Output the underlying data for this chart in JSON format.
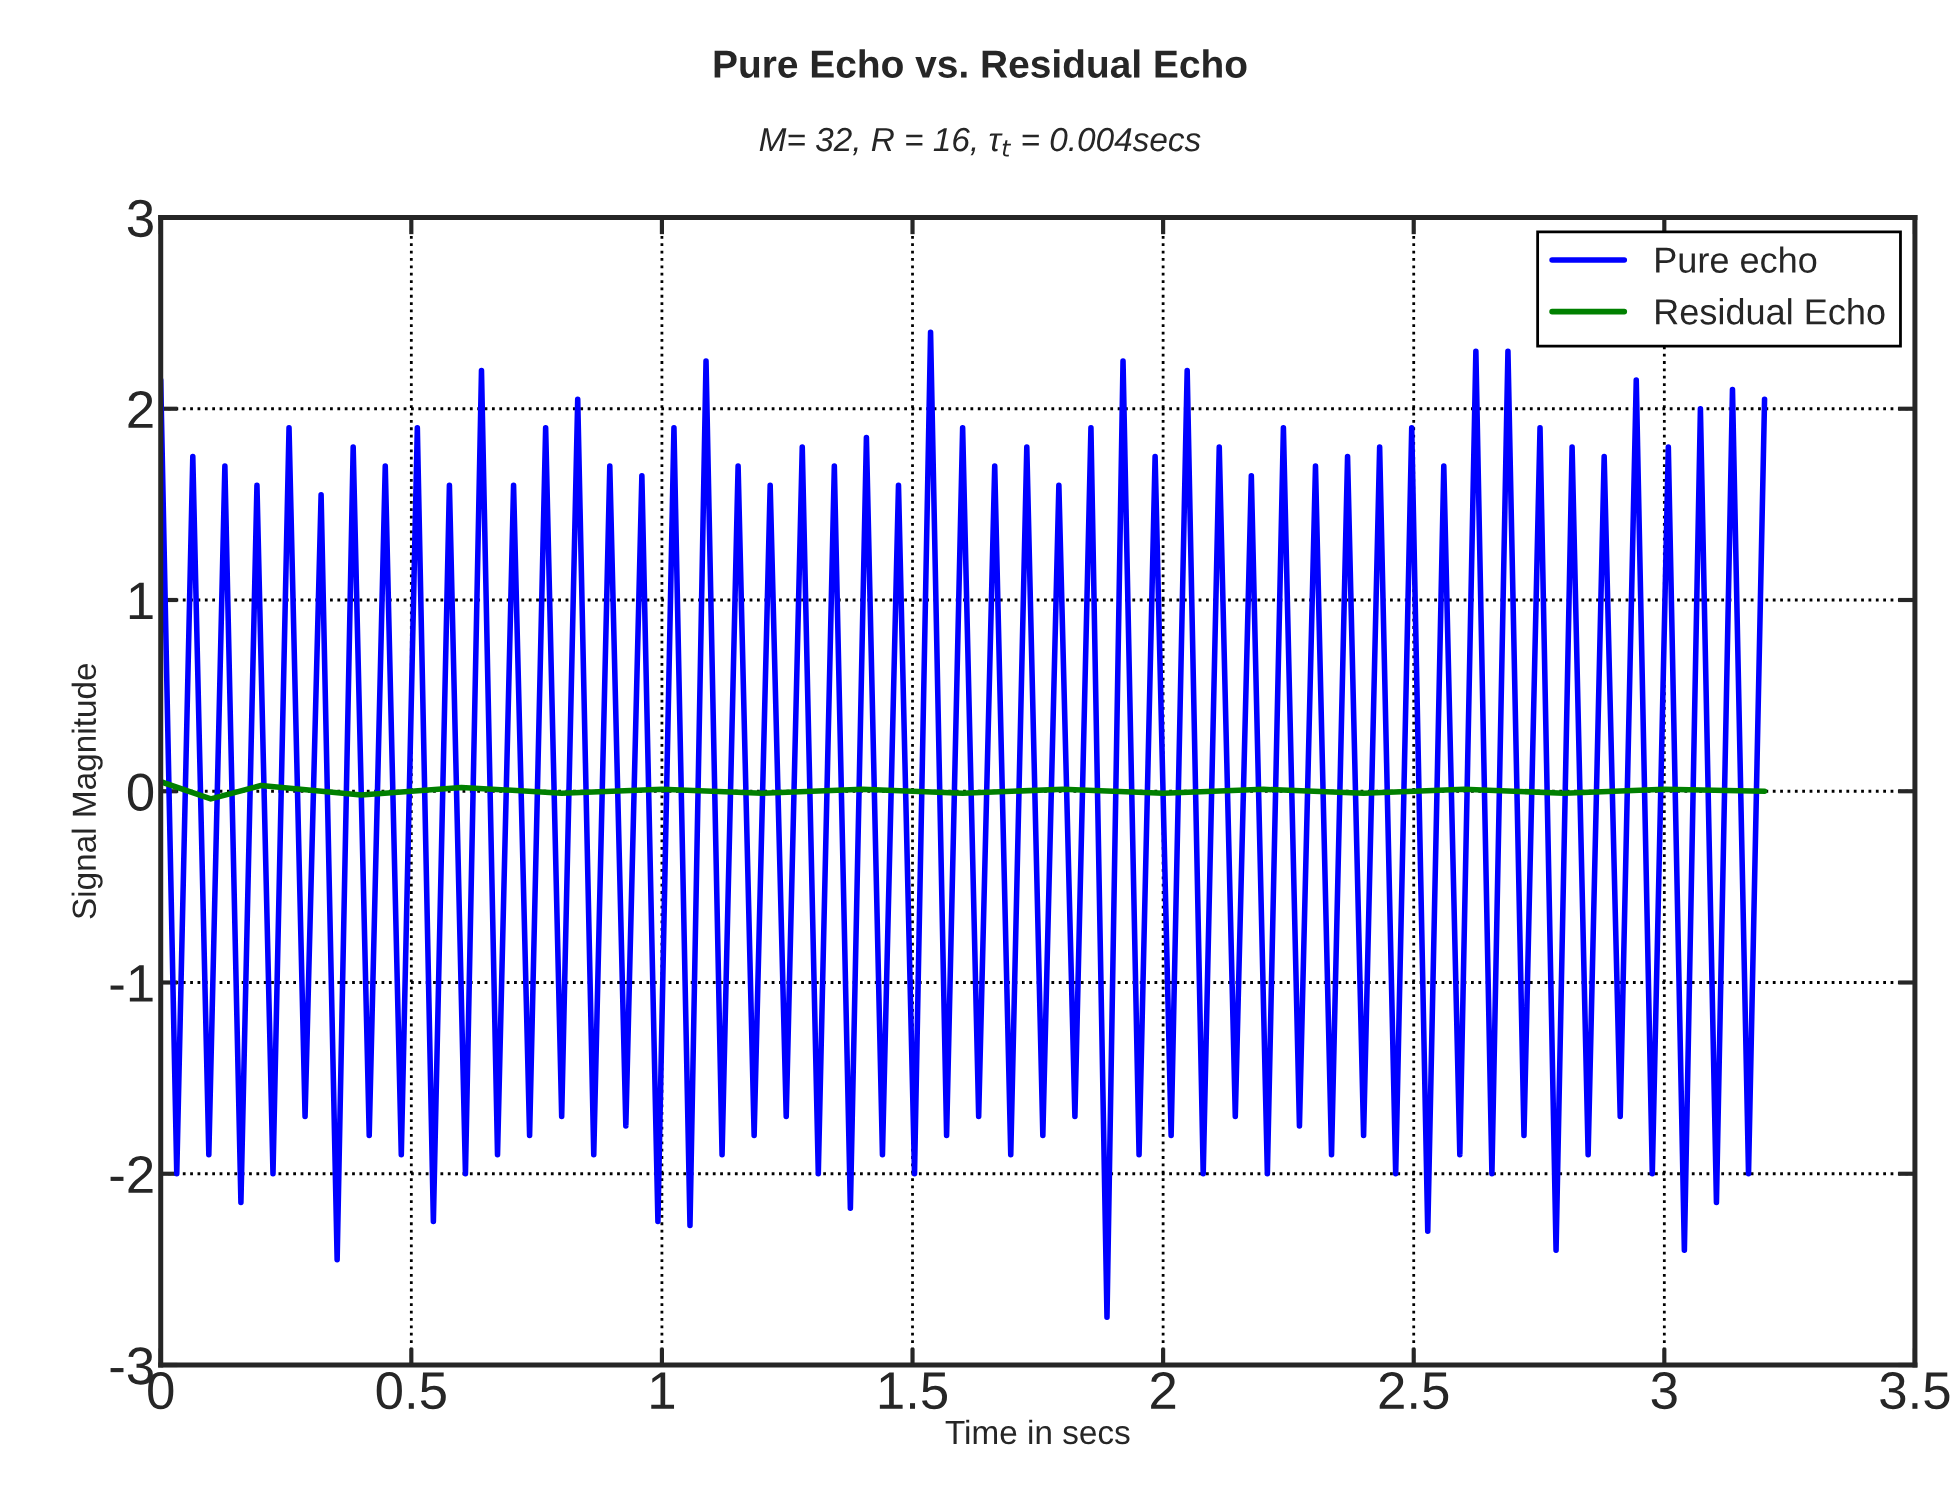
{
  "chart_data": {
    "type": "line",
    "title": "Pure Echo vs. Residual Echo",
    "subtitle": "M= 32, R = 16, τ$_{t}$ = 0.004secs",
    "xlabel": "Time in secs",
    "ylabel": "Signal Magnitude",
    "xlim": [
      0,
      3.5
    ],
    "xticks": [
      0,
      0.5,
      1,
      1.5,
      2,
      2.5,
      3,
      3.5
    ],
    "ylim": [
      -3,
      3
    ],
    "yticks": [
      -3,
      -2,
      -1,
      0,
      1,
      2,
      3
    ],
    "grid": true,
    "legend": "top right",
    "marker": "none",
    "line_style": "solid",
    "series": [
      {
        "name": "Pure echo",
        "color": "#0000ff",
        "x": [
          0,
          0.032,
          0.064,
          0.096,
          0.128,
          0.16,
          0.192,
          0.224,
          0.256,
          0.288,
          0.32,
          0.352,
          0.384,
          0.416,
          0.448,
          0.48,
          0.512,
          0.544,
          0.576,
          0.608,
          0.64,
          0.672,
          0.704,
          0.736,
          0.768,
          0.8,
          0.832,
          0.864,
          0.896,
          0.928,
          0.96,
          0.992,
          1.024,
          1.056,
          1.088,
          1.12,
          1.152,
          1.184,
          1.216,
          1.248,
          1.28,
          1.312,
          1.344,
          1.376,
          1.408,
          1.44,
          1.472,
          1.504,
          1.536,
          1.568,
          1.6,
          1.632,
          1.664,
          1.696,
          1.728,
          1.76,
          1.792,
          1.824,
          1.856,
          1.888,
          1.92,
          1.952,
          1.984,
          2.016,
          2.048,
          2.08,
          2.112,
          2.144,
          2.176,
          2.208,
          2.24,
          2.272,
          2.304,
          2.336,
          2.368,
          2.4,
          2.432,
          2.464,
          2.496,
          2.528,
          2.56,
          2.592,
          2.624,
          2.656,
          2.688,
          2.72,
          2.752,
          2.784,
          2.816,
          2.848,
          2.88,
          2.912,
          2.944,
          2.976,
          3.008,
          3.04,
          3.072,
          3.104,
          3.136,
          3.168,
          3.2
        ],
        "values": [
          2.15,
          -2.0,
          1.75,
          -1.9,
          1.7,
          -2.15,
          1.6,
          -2.0,
          1.9,
          -1.7,
          1.55,
          -2.45,
          1.8,
          -1.8,
          1.7,
          -1.9,
          1.9,
          -2.25,
          1.6,
          -2.0,
          2.2,
          -1.9,
          1.6,
          -1.8,
          1.9,
          -1.7,
          2.05,
          -1.9,
          1.7,
          -1.75,
          1.65,
          -2.25,
          1.9,
          -2.27,
          2.25,
          -1.9,
          1.7,
          -1.8,
          1.6,
          -1.7,
          1.8,
          -2.0,
          1.7,
          -2.18,
          1.85,
          -1.9,
          1.6,
          -2.0,
          2.4,
          -1.8,
          1.9,
          -1.7,
          1.7,
          -1.9,
          1.8,
          -1.8,
          1.6,
          -1.7,
          1.9,
          -2.75,
          2.25,
          -1.9,
          1.75,
          -1.8,
          2.2,
          -2.0,
          1.8,
          -1.7,
          1.65,
          -2.0,
          1.9,
          -1.75,
          1.7,
          -1.9,
          1.75,
          -1.8,
          1.8,
          -2.0,
          1.9,
          -2.3,
          1.7,
          -1.9,
          2.3,
          -2.0,
          2.3,
          -1.8,
          1.9,
          -2.4,
          1.8,
          -1.9,
          1.75,
          -1.7,
          2.15,
          -2.0,
          1.8,
          -2.4,
          2.0,
          -2.15,
          2.1,
          -2.0,
          2.05
        ]
      },
      {
        "name": "Residual Echo",
        "color": "#008000",
        "x": [
          0,
          0.1,
          0.2,
          0.4,
          0.6,
          0.8,
          1.0,
          1.2,
          1.4,
          1.6,
          1.8,
          2.0,
          2.2,
          2.4,
          2.6,
          2.8,
          3.0,
          3.2
        ],
        "values": [
          0.05,
          -0.04,
          0.03,
          -0.02,
          0.02,
          -0.01,
          0.01,
          -0.01,
          0.01,
          -0.01,
          0.01,
          -0.01,
          0.01,
          -0.01,
          0.01,
          -0.01,
          0.01,
          0
        ]
      }
    ]
  }
}
